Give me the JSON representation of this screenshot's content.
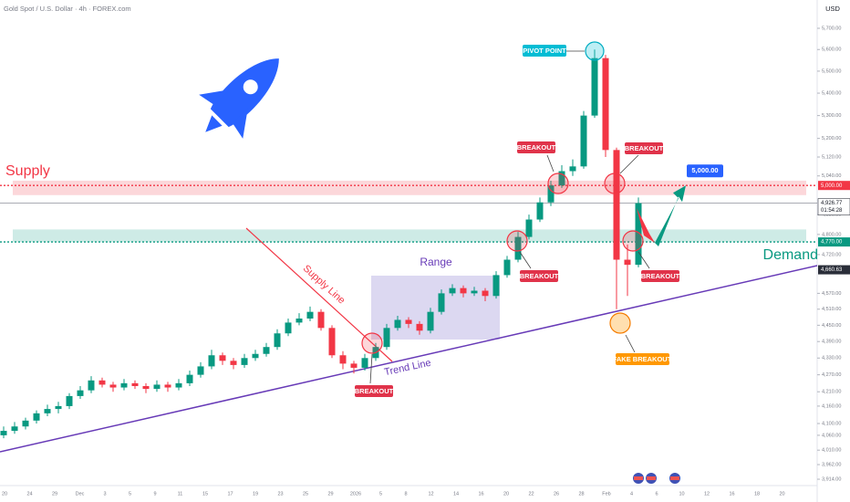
{
  "chart_data": {
    "type": "candlestick",
    "title": "Gold Spot / U.S. Dollar · 4h · FOREX.com",
    "currency": "USD",
    "log_scale": true,
    "ylim": [
      3855,
      5836
    ],
    "yticks": [
      {
        "value": 5700,
        "label": "5,700.00"
      },
      {
        "value": 5600,
        "label": "5,600.00"
      },
      {
        "value": 5500,
        "label": "5,500.00"
      },
      {
        "value": 5400,
        "label": "5,400.00"
      },
      {
        "value": 5300,
        "label": "5,300.00"
      },
      {
        "value": 5200,
        "label": "5,200.00"
      },
      {
        "value": 5120,
        "label": "5,120.00"
      },
      {
        "value": 5040,
        "label": "5,040.00"
      },
      {
        "value": 4880,
        "label": "4,880.00"
      },
      {
        "value": 4800,
        "label": "4,800.00"
      },
      {
        "value": 4720,
        "label": "4,720.00"
      },
      {
        "value": 4570,
        "label": "4,570.00"
      },
      {
        "value": 4510,
        "label": "4,510.00"
      },
      {
        "value": 4450,
        "label": "4,450.00"
      },
      {
        "value": 4390,
        "label": "4,390.00"
      },
      {
        "value": 4330,
        "label": "4,330.00"
      },
      {
        "value": 4270,
        "label": "4,270.00"
      },
      {
        "value": 4210,
        "label": "4,210.00"
      },
      {
        "value": 4160,
        "label": "4,160.00"
      },
      {
        "value": 4100,
        "label": "4,100.00"
      },
      {
        "value": 4060,
        "label": "4,060.00"
      },
      {
        "value": 4010,
        "label": "4,010.00"
      },
      {
        "value": 3962,
        "label": "3,962.00"
      },
      {
        "value": 3914,
        "label": "3,914.00"
      }
    ],
    "time_labels": [
      "20",
      "24",
      "29",
      "Dec",
      "3",
      "5",
      "9",
      "11",
      "15",
      "17",
      "19",
      "23",
      "25",
      "29",
      "2026",
      "5",
      "8",
      "12",
      "14",
      "16",
      "20",
      "22",
      "26",
      "28",
      "Feb",
      "4",
      "6",
      "10",
      "12",
      "16",
      "18",
      "20"
    ],
    "up_color": "#089981",
    "down_color": "#f23645",
    "open": [
      4060,
      4075,
      4090,
      4110,
      4135,
      4150,
      4160,
      4195,
      4215,
      4250,
      4235,
      4225,
      4240,
      4230,
      4220,
      4235,
      4225,
      4240,
      4270,
      4300,
      4340,
      4320,
      4305,
      4330,
      4345,
      4370,
      4420,
      4460,
      4475,
      4500,
      4440,
      4340,
      4310,
      4295,
      4330,
      4370,
      4440,
      4470,
      4455,
      4430,
      4500,
      4570,
      4590,
      4570,
      4580,
      4560,
      4640,
      4700,
      4790,
      4860,
      4930,
      5000,
      5060,
      5080,
      5300,
      5560,
      5150,
      4700,
      4680
    ],
    "high": [
      4090,
      4105,
      4120,
      4145,
      4165,
      4175,
      4205,
      4230,
      4265,
      4260,
      4245,
      4255,
      4250,
      4240,
      4250,
      4245,
      4255,
      4285,
      4315,
      4360,
      4350,
      4330,
      4345,
      4360,
      4385,
      4435,
      4475,
      4495,
      4520,
      4510,
      4450,
      4355,
      4320,
      4345,
      4385,
      4455,
      4485,
      4480,
      4465,
      4515,
      4585,
      4605,
      4600,
      4595,
      4590,
      4655,
      4715,
      4810,
      4880,
      4950,
      5020,
      5085,
      5110,
      5320,
      5600,
      5575,
      5160,
      4760,
      4950
    ],
    "low": [
      4050,
      4065,
      4080,
      4100,
      4125,
      4135,
      4150,
      4185,
      4205,
      4225,
      4210,
      4215,
      4220,
      4205,
      4210,
      4210,
      4215,
      4230,
      4260,
      4290,
      4305,
      4290,
      4295,
      4320,
      4335,
      4360,
      4410,
      4450,
      4465,
      4430,
      4330,
      4290,
      4275,
      4285,
      4320,
      4360,
      4430,
      4440,
      4415,
      4420,
      4490,
      4560,
      4555,
      4560,
      4540,
      4550,
      4630,
      4690,
      4780,
      4850,
      4915,
      4990,
      5040,
      5070,
      5290,
      5120,
      4510,
      4560,
      4670
    ],
    "close": [
      4075,
      4090,
      4110,
      4135,
      4150,
      4160,
      4195,
      4215,
      4250,
      4235,
      4225,
      4240,
      4230,
      4220,
      4235,
      4225,
      4240,
      4270,
      4300,
      4340,
      4320,
      4305,
      4330,
      4345,
      4370,
      4420,
      4460,
      4475,
      4500,
      4440,
      4340,
      4310,
      4295,
      4330,
      4370,
      4440,
      4470,
      4455,
      4430,
      4500,
      4570,
      4590,
      4570,
      4580,
      4560,
      4640,
      4700,
      4790,
      4860,
      4930,
      5000,
      5060,
      5080,
      5300,
      5560,
      5150,
      4700,
      4680,
      4927
    ],
    "levels": [
      {
        "value": 5000,
        "label": "5,000.00",
        "color": "#f23645"
      },
      {
        "value": 4770,
        "label": "4,770.00",
        "color": "#089981"
      }
    ],
    "last_price": {
      "value": 4926.77,
      "label": "4,926.77",
      "countdown": "01:54:28"
    },
    "trend_price": {
      "value": 4660.63,
      "label": "4,660.63"
    },
    "zones": {
      "supply": [
        4960,
        5020
      ],
      "demand": [
        4770,
        4820
      ]
    },
    "target": {
      "value": 5000,
      "label": "5,000.00"
    },
    "annotations": {
      "supply": "Supply",
      "demand": "Demand",
      "supply_line": "Supply Line",
      "trend_line": "Trend Line",
      "range": "Range",
      "pivot": "PIVOT POINT",
      "fake_breakout": "FAKE BREAKOUT"
    },
    "breakouts": [
      "BREAKOUT",
      "BREAKOUT",
      "BREAKOUT",
      "BREAKOUT",
      "BREAKOUT"
    ]
  }
}
